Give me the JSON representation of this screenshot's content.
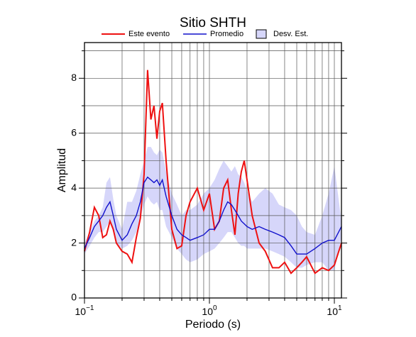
{
  "chart_data": {
    "type": "line",
    "title": "Sitio SHTH",
    "xlabel": "Periodo (s)",
    "ylabel": "Amplitud",
    "xscale": "log",
    "xlim": [
      0.1,
      11.4
    ],
    "ylim": [
      0,
      9.3
    ],
    "xticks": [
      {
        "value": 0.1,
        "label": "10",
        "exponent": "−1"
      },
      {
        "value": 1,
        "label": "10",
        "exponent": "0"
      },
      {
        "value": 10,
        "label": "10",
        "exponent": "1"
      }
    ],
    "yticks": [
      0,
      2,
      4,
      6,
      8
    ],
    "xgrid": [
      0.2,
      0.3,
      0.4,
      0.5,
      0.6,
      0.7,
      0.8,
      0.9,
      2,
      3,
      4,
      5,
      6,
      7,
      8,
      9
    ],
    "ygrid": [
      1,
      3,
      5,
      7,
      9
    ],
    "grid": true,
    "x": [
      0.1,
      0.11,
      0.12,
      0.13,
      0.14,
      0.15,
      0.16,
      0.17,
      0.18,
      0.2,
      0.22,
      0.24,
      0.26,
      0.28,
      0.3,
      0.32,
      0.34,
      0.36,
      0.38,
      0.4,
      0.42,
      0.45,
      0.5,
      0.55,
      0.6,
      0.65,
      0.7,
      0.8,
      0.9,
      1.0,
      1.1,
      1.2,
      1.3,
      1.4,
      1.5,
      1.6,
      1.7,
      1.8,
      1.9,
      2.0,
      2.2,
      2.5,
      2.8,
      3.2,
      3.6,
      4,
      4.5,
      5,
      5.5,
      6,
      7,
      8,
      9,
      10,
      11.4
    ],
    "band": {
      "name": "Desv. Est.",
      "color": "#d6d6fa",
      "upper": [
        2.0,
        2.4,
        2.8,
        3.0,
        3.3,
        4.2,
        4.4,
        3.6,
        3.0,
        2.5,
        3.5,
        3.5,
        3.9,
        4.5,
        5.0,
        5.5,
        5.5,
        5.3,
        5.2,
        5.4,
        5.3,
        4.6,
        3.8,
        3.4,
        3.0,
        3.2,
        3.2,
        3.4,
        3.8,
        4.0,
        4.3,
        4.7,
        5.0,
        4.8,
        4.6,
        4.8,
        4.5,
        4.4,
        4.2,
        3.9,
        3.5,
        3.8,
        4.0,
        3.8,
        3.4,
        3.3,
        3.2,
        3.0,
        2.6,
        2.4,
        2.3,
        3.0,
        3.8,
        4.8,
        2.8
      ],
      "lower": [
        1.6,
        1.9,
        2.2,
        2.4,
        2.4,
        2.6,
        2.8,
        2.4,
        2.0,
        1.8,
        1.9,
        2.1,
        2.4,
        2.9,
        3.4,
        3.7,
        3.5,
        3.4,
        3.5,
        3.2,
        3.2,
        2.6,
        2.2,
        1.8,
        1.6,
        1.4,
        1.3,
        1.4,
        1.6,
        1.7,
        1.8,
        2.0,
        2.2,
        2.4,
        2.4,
        2.2,
        2.0,
        1.9,
        1.9,
        1.8,
        1.8,
        1.8,
        1.8,
        1.7,
        1.6,
        1.5,
        1.3,
        1.1,
        1.1,
        1.2,
        1.3,
        1.3,
        1.0,
        1.0,
        2.2
      ]
    },
    "series": [
      {
        "name": "Este evento",
        "color": "#ee1111",
        "values": [
          1.7,
          2.4,
          3.3,
          3.0,
          2.2,
          2.3,
          2.8,
          2.5,
          2.0,
          1.7,
          1.6,
          1.3,
          2.2,
          2.9,
          4.5,
          8.3,
          6.5,
          7.0,
          5.8,
          6.8,
          7.1,
          5.0,
          2.5,
          1.8,
          1.9,
          3.0,
          3.5,
          4.0,
          3.2,
          3.8,
          2.5,
          2.8,
          4.0,
          4.3,
          3.2,
          2.3,
          3.8,
          4.6,
          5.0,
          4.3,
          3.0,
          2.0,
          1.7,
          1.1,
          1.1,
          1.3,
          0.9,
          1.1,
          1.3,
          1.5,
          0.9,
          1.1,
          1.0,
          1.2,
          2.0
        ]
      },
      {
        "name": "Promedio",
        "color": "#1111cc",
        "values": [
          1.8,
          2.2,
          2.6,
          2.8,
          3.0,
          3.3,
          3.5,
          3.0,
          2.5,
          2.1,
          2.3,
          2.7,
          3.0,
          3.5,
          4.2,
          4.4,
          4.3,
          4.2,
          4.3,
          4.1,
          4.3,
          3.7,
          3.0,
          2.5,
          2.3,
          2.2,
          2.1,
          2.2,
          2.3,
          2.5,
          2.5,
          2.8,
          3.2,
          3.5,
          3.4,
          3.2,
          3.0,
          2.8,
          2.7,
          2.6,
          2.5,
          2.6,
          2.5,
          2.4,
          2.3,
          2.2,
          1.9,
          1.6,
          1.6,
          1.6,
          1.8,
          2.0,
          2.1,
          2.1,
          2.6
        ]
      }
    ]
  }
}
